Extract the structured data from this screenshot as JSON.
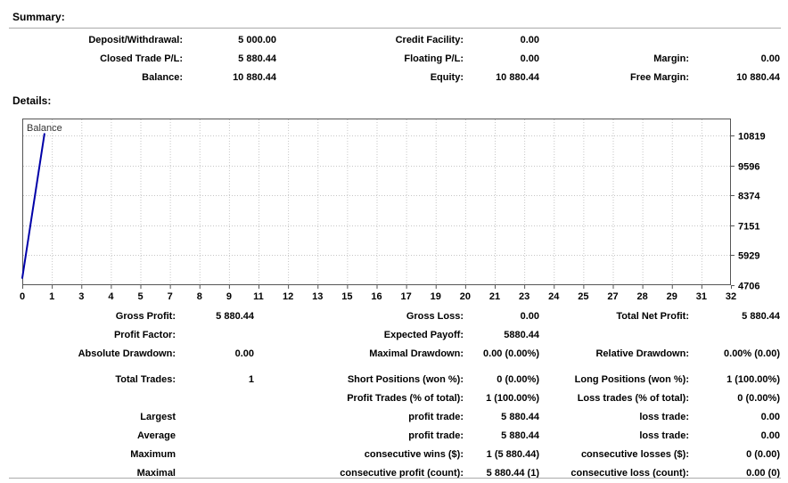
{
  "summary": {
    "heading": "Summary:",
    "rows": [
      [
        "Deposit/Withdrawal:",
        "5 000.00",
        "Credit Facility:",
        "0.00",
        "",
        ""
      ],
      [
        "Closed Trade P/L:",
        "5 880.44",
        "Floating P/L:",
        "0.00",
        "Margin:",
        "0.00"
      ],
      [
        "Balance:",
        "10 880.44",
        "Equity:",
        "10 880.44",
        "Free Margin:",
        "10 880.44"
      ]
    ]
  },
  "details": {
    "heading": "Details:",
    "stats_group1": [
      [
        "Gross Profit:",
        "5 880.44",
        "Gross Loss:",
        "0.00",
        "Total Net Profit:",
        "5 880.44"
      ],
      [
        "Profit Factor:",
        "",
        "Expected Payoff:",
        "5880.44",
        "",
        ""
      ],
      [
        "Absolute Drawdown:",
        "0.00",
        "Maximal Drawdown:",
        "0.00 (0.00%)",
        "Relative Drawdown:",
        "0.00% (0.00)"
      ]
    ],
    "stats_group2": [
      [
        "Total Trades:",
        "1",
        "Short Positions (won %):",
        "0 (0.00%)",
        "Long Positions (won %):",
        "1 (100.00%)"
      ],
      [
        "",
        "",
        "Profit Trades (% of total):",
        "1 (100.00%)",
        "Loss trades (% of total):",
        "0 (0.00%)"
      ],
      [
        "Largest",
        "",
        "profit trade:",
        "5 880.44",
        "loss trade:",
        "0.00"
      ],
      [
        "Average",
        "",
        "profit trade:",
        "5 880.44",
        "loss trade:",
        "0.00"
      ],
      [
        "Maximum",
        "",
        "consecutive wins ($):",
        "1 (5 880.44)",
        "consecutive losses ($):",
        "0 (0.00)"
      ],
      [
        "Maximal",
        "",
        "consecutive profit (count):",
        "5 880.44 (1)",
        "consecutive loss (count):",
        "0.00 (0)"
      ]
    ]
  },
  "chart_data": {
    "type": "line",
    "title": "",
    "legend_label": "Balance",
    "series": [
      {
        "name": "Balance",
        "color": "#0000A8",
        "x": [
          0,
          1
        ],
        "values": [
          5000,
          10880.44
        ]
      }
    ],
    "x_tick_labels": [
      "0",
      "1",
      "3",
      "4",
      "5",
      "7",
      "8",
      "9",
      "11",
      "12",
      "13",
      "15",
      "16",
      "17",
      "19",
      "20",
      "21",
      "23",
      "24",
      "25",
      "27",
      "28",
      "29",
      "31",
      "32"
    ],
    "x_data_max": 32,
    "y_ticks": [
      4706,
      5929,
      7151,
      8374,
      9596,
      10819
    ],
    "y_min": 4706,
    "y_top": 11510,
    "ylim": [
      4706,
      11510
    ],
    "grid": "dashed",
    "legend_position": "top-left",
    "y_axis_side": "right",
    "colors": {
      "grid": "#c6c6c6",
      "border": "#555555",
      "axis_text": "#000000"
    }
  }
}
